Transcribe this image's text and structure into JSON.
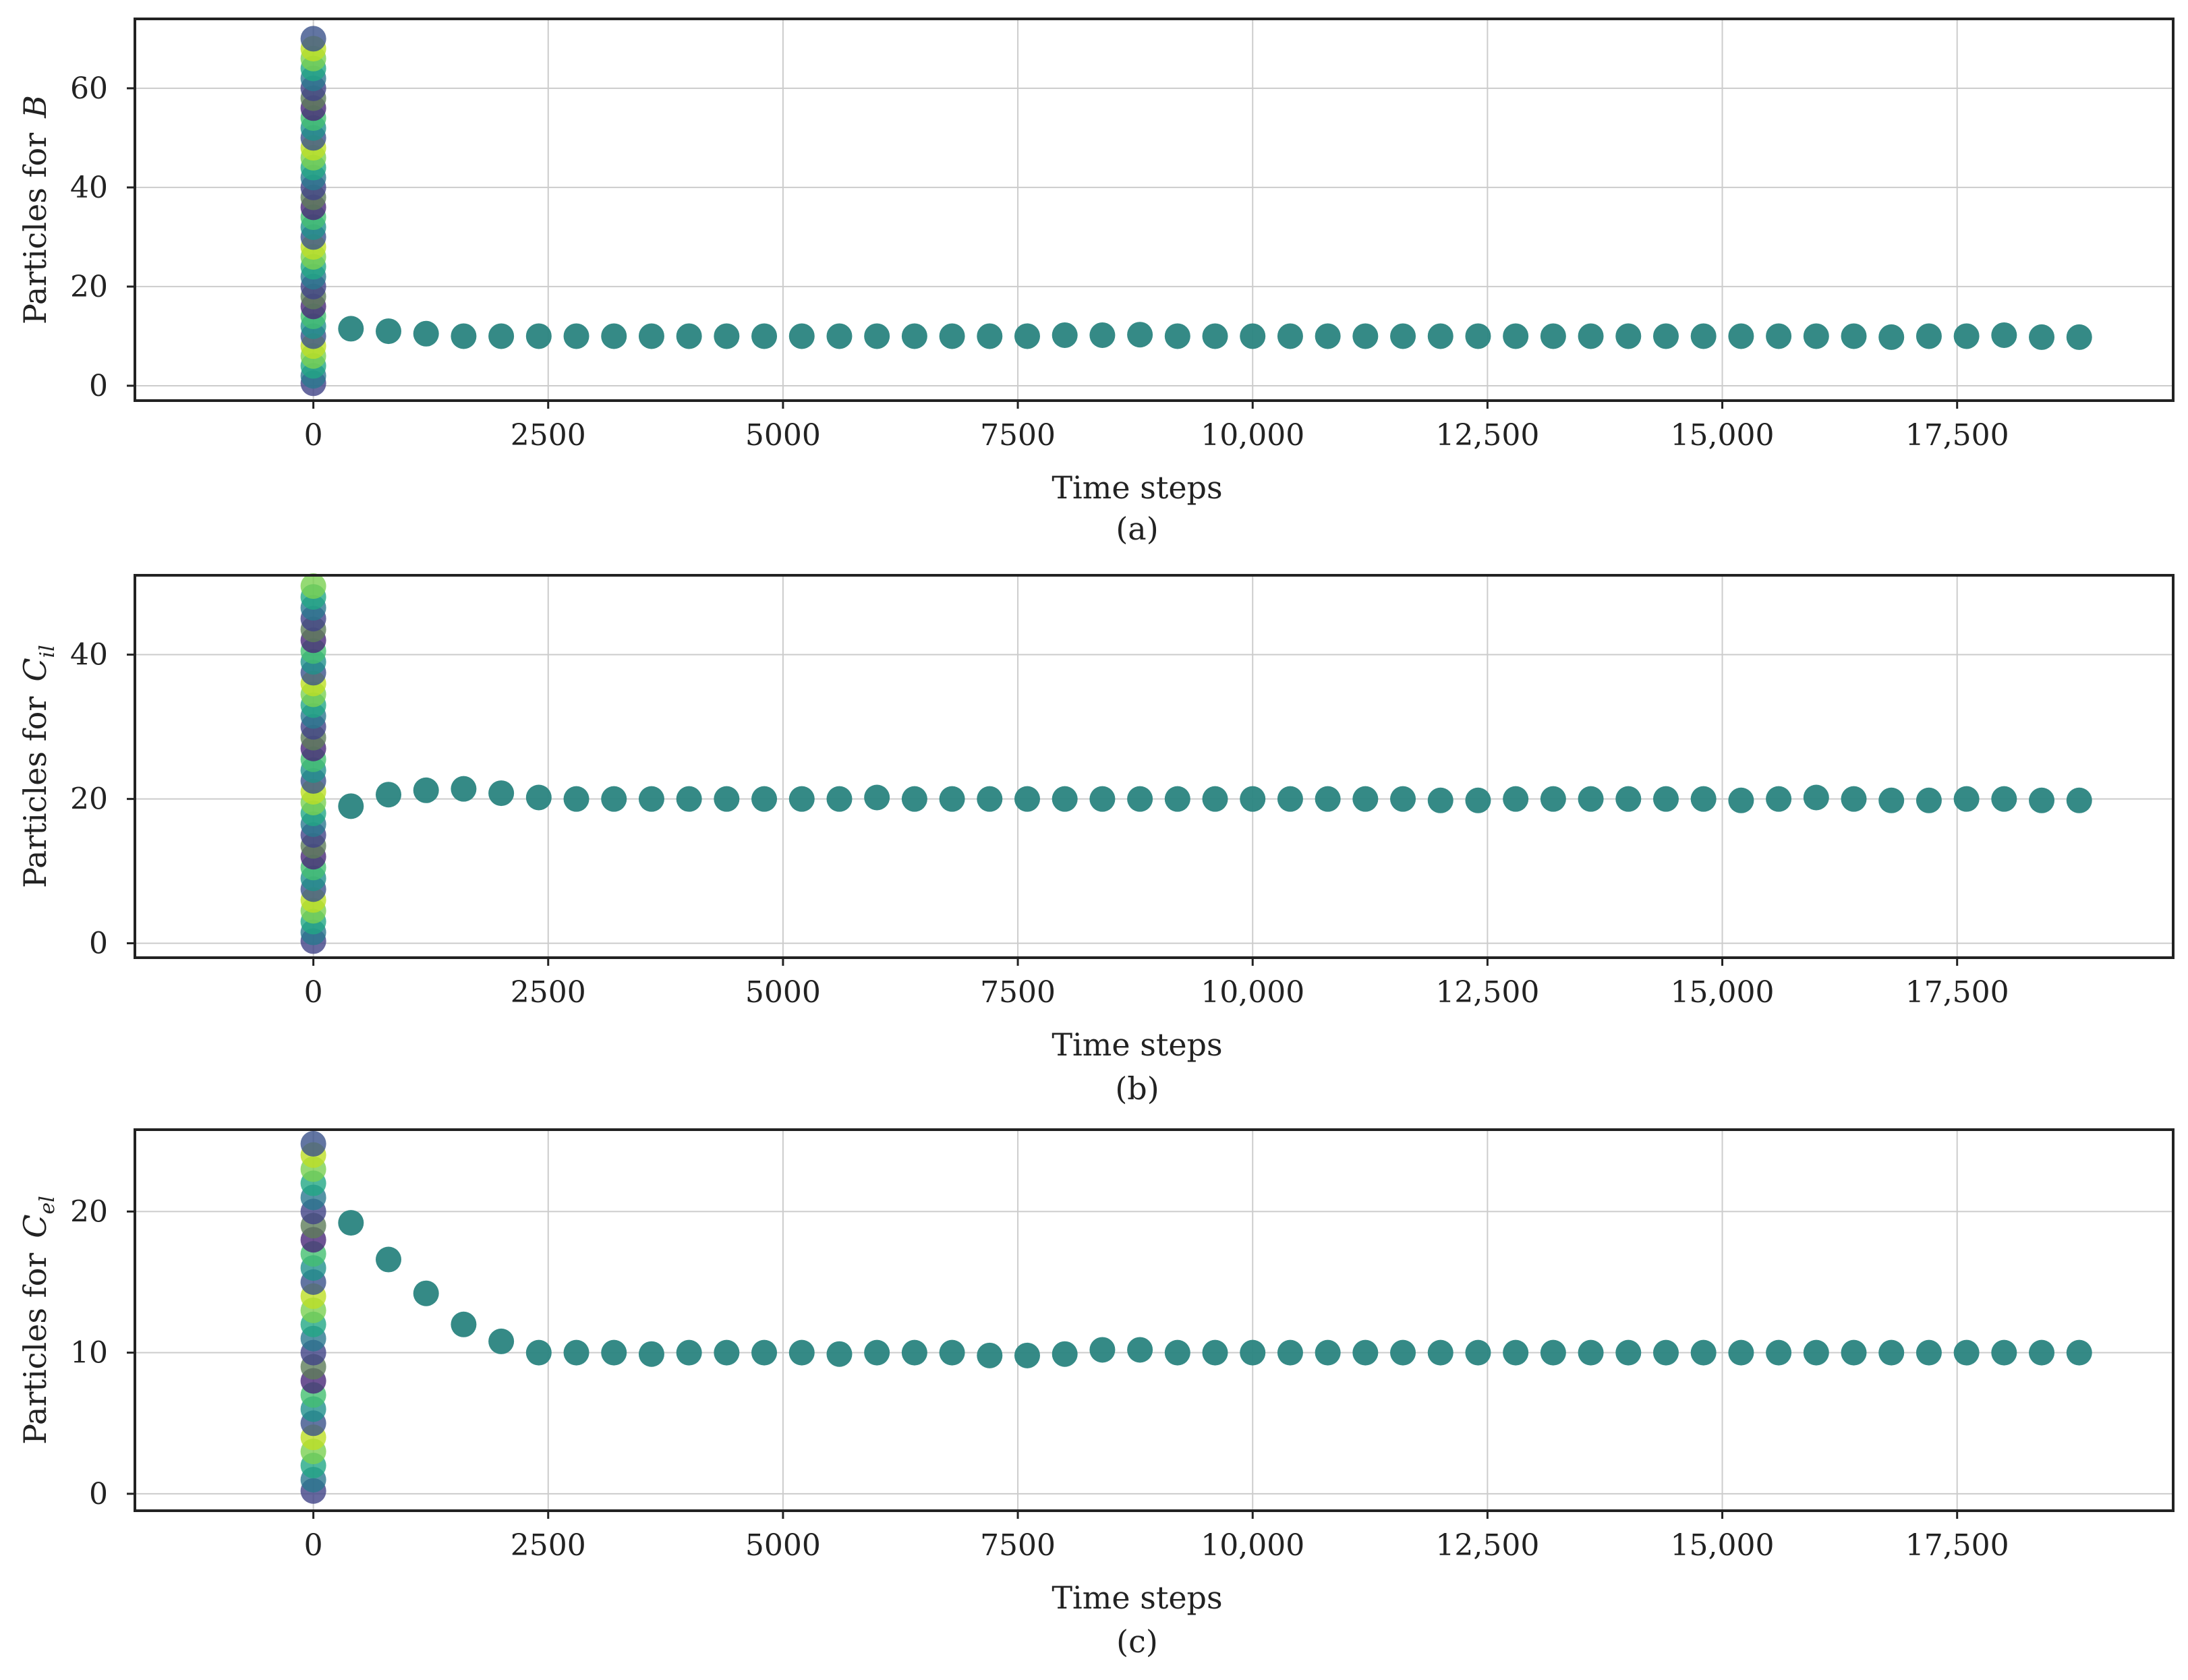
{
  "chart_data": [
    {
      "type": "scatter",
      "caption": "(a)",
      "xlabel": "Time steps",
      "ylabel_prefix": "Particles for",
      "ylabel_var": "B",
      "ylabel_sub": "",
      "xlim": [
        -1900,
        19800
      ],
      "ylim": [
        -3,
        74
      ],
      "x_ticks": [
        0,
        2500,
        5000,
        7500,
        10000,
        12500,
        15000,
        17500
      ],
      "x_tick_labels": [
        "0",
        "2500",
        "5000",
        "7500",
        "10,000",
        "12,500",
        "15,000",
        "17,500"
      ],
      "y_ticks": [
        0,
        20,
        40,
        60
      ],
      "y_tick_labels": [
        "0",
        "20",
        "40",
        "60"
      ],
      "grid": true,
      "initial_particles": [
        0.5,
        2,
        4,
        6,
        8,
        10,
        12,
        14,
        16,
        18,
        20,
        22,
        24,
        26,
        28,
        30,
        32,
        34,
        36,
        38,
        40,
        42,
        44,
        46,
        48,
        50,
        52,
        54,
        56,
        58,
        60,
        62,
        64,
        66,
        68,
        70
      ],
      "x": [
        400,
        800,
        1200,
        1600,
        2000,
        2400,
        2800,
        3200,
        3600,
        4000,
        4400,
        4800,
        5200,
        5600,
        6000,
        6400,
        6800,
        7200,
        7600,
        8000,
        8400,
        8800,
        9200,
        9600,
        10000,
        10400,
        10800,
        11200,
        11600,
        12000,
        12400,
        12800,
        13200,
        13600,
        14000,
        14400,
        14800,
        15200,
        15600,
        16000,
        16400,
        16800,
        17200,
        17600,
        18000,
        18400,
        18800
      ],
      "y": [
        11.5,
        11,
        10.5,
        10,
        10,
        10,
        10,
        10,
        10,
        10,
        10,
        10,
        10,
        10,
        10,
        10,
        10,
        10,
        10,
        10.2,
        10.2,
        10.3,
        10,
        10,
        10,
        10,
        10,
        10,
        10,
        10,
        10,
        10,
        10,
        10,
        10,
        10,
        10,
        10,
        10,
        10,
        10,
        9.8,
        10,
        10,
        10.2,
        9.8,
        9.8
      ]
    },
    {
      "type": "scatter",
      "caption": "(b)",
      "xlabel": "Time steps",
      "ylabel_prefix": "Particles for",
      "ylabel_var": "C",
      "ylabel_sub": "il",
      "xlim": [
        -1900,
        19800
      ],
      "ylim": [
        -2,
        51
      ],
      "x_ticks": [
        0,
        2500,
        5000,
        7500,
        10000,
        12500,
        15000,
        17500
      ],
      "x_tick_labels": [
        "0",
        "2500",
        "5000",
        "7500",
        "10,000",
        "12,500",
        "15,000",
        "17,500"
      ],
      "y_ticks": [
        0,
        20,
        40
      ],
      "y_tick_labels": [
        "0",
        "20",
        "40"
      ],
      "grid": true,
      "initial_particles": [
        0.3,
        1.5,
        3,
        4.5,
        6,
        7.5,
        9,
        10.5,
        12,
        13.5,
        15,
        16.5,
        18,
        19.5,
        21,
        22.5,
        24,
        25.5,
        27,
        28.5,
        30,
        31.5,
        33,
        34.5,
        36,
        37.5,
        39,
        40.5,
        42,
        43.5,
        45,
        46.5,
        48,
        49.5
      ],
      "x": [
        400,
        800,
        1200,
        1600,
        2000,
        2400,
        2800,
        3200,
        3600,
        4000,
        4400,
        4800,
        5200,
        5600,
        6000,
        6400,
        6800,
        7200,
        7600,
        8000,
        8400,
        8800,
        9200,
        9600,
        10000,
        10400,
        10800,
        11200,
        11600,
        12000,
        12400,
        12800,
        13200,
        13600,
        14000,
        14400,
        14800,
        15200,
        15600,
        16000,
        16400,
        16800,
        17200,
        17600,
        18000,
        18400,
        18800
      ],
      "y": [
        19,
        20.6,
        21.2,
        21.4,
        20.8,
        20.2,
        20,
        20,
        20,
        20,
        20,
        20,
        20,
        20,
        20.2,
        20,
        20,
        20,
        20,
        20,
        20,
        20,
        20,
        20,
        20,
        20,
        20,
        20,
        20,
        19.8,
        19.8,
        20,
        20,
        20,
        20,
        20,
        20,
        19.8,
        20,
        20.2,
        20,
        19.8,
        19.8,
        20,
        20,
        19.8,
        19.8
      ]
    },
    {
      "type": "scatter",
      "caption": "(c)",
      "xlabel": "Time steps",
      "ylabel_prefix": "Particles for",
      "ylabel_var": "C",
      "ylabel_sub": "el",
      "xlim": [
        -1900,
        19800
      ],
      "ylim": [
        -1.2,
        25.8
      ],
      "x_ticks": [
        0,
        2500,
        5000,
        7500,
        10000,
        12500,
        15000,
        17500
      ],
      "x_tick_labels": [
        "0",
        "2500",
        "5000",
        "7500",
        "10,000",
        "12,500",
        "15,000",
        "17,500"
      ],
      "y_ticks": [
        0,
        10,
        20
      ],
      "y_tick_labels": [
        "0",
        "10",
        "20"
      ],
      "grid": true,
      "initial_particles": [
        0.2,
        1,
        2,
        3,
        4,
        5,
        6,
        7,
        8,
        9,
        10,
        11,
        12,
        13,
        14,
        15,
        16,
        17,
        18,
        19,
        20,
        21,
        22,
        23,
        24,
        24.8
      ],
      "x": [
        400,
        800,
        1200,
        1600,
        2000,
        2400,
        2800,
        3200,
        3600,
        4000,
        4400,
        4800,
        5200,
        5600,
        6000,
        6400,
        6800,
        7200,
        7600,
        8000,
        8400,
        8800,
        9200,
        9600,
        10000,
        10400,
        10800,
        11200,
        11600,
        12000,
        12400,
        12800,
        13200,
        13600,
        14000,
        14400,
        14800,
        15200,
        15600,
        16000,
        16400,
        16800,
        17200,
        17600,
        18000,
        18400,
        18800
      ],
      "y": [
        19.2,
        16.6,
        14.2,
        12,
        10.8,
        10,
        10,
        10,
        9.9,
        10,
        10,
        10,
        10,
        9.9,
        10,
        10,
        10,
        9.8,
        9.8,
        9.9,
        10.2,
        10.2,
        10,
        10,
        10,
        10,
        10,
        10,
        10,
        10,
        10,
        10,
        10,
        10,
        10,
        10,
        10,
        10,
        10,
        10,
        10,
        10,
        10,
        10,
        10,
        10,
        10
      ]
    }
  ],
  "colors": {
    "series_main": "#2a8480",
    "initial_palette": [
      "#414487",
      "#2a788e",
      "#22a884",
      "#7ad151",
      "#bddf26",
      "#3b528b",
      "#21918c",
      "#44bf70",
      "#482878",
      "#5e7d5a"
    ],
    "grid": "#cccccc",
    "frame": "#222222"
  }
}
